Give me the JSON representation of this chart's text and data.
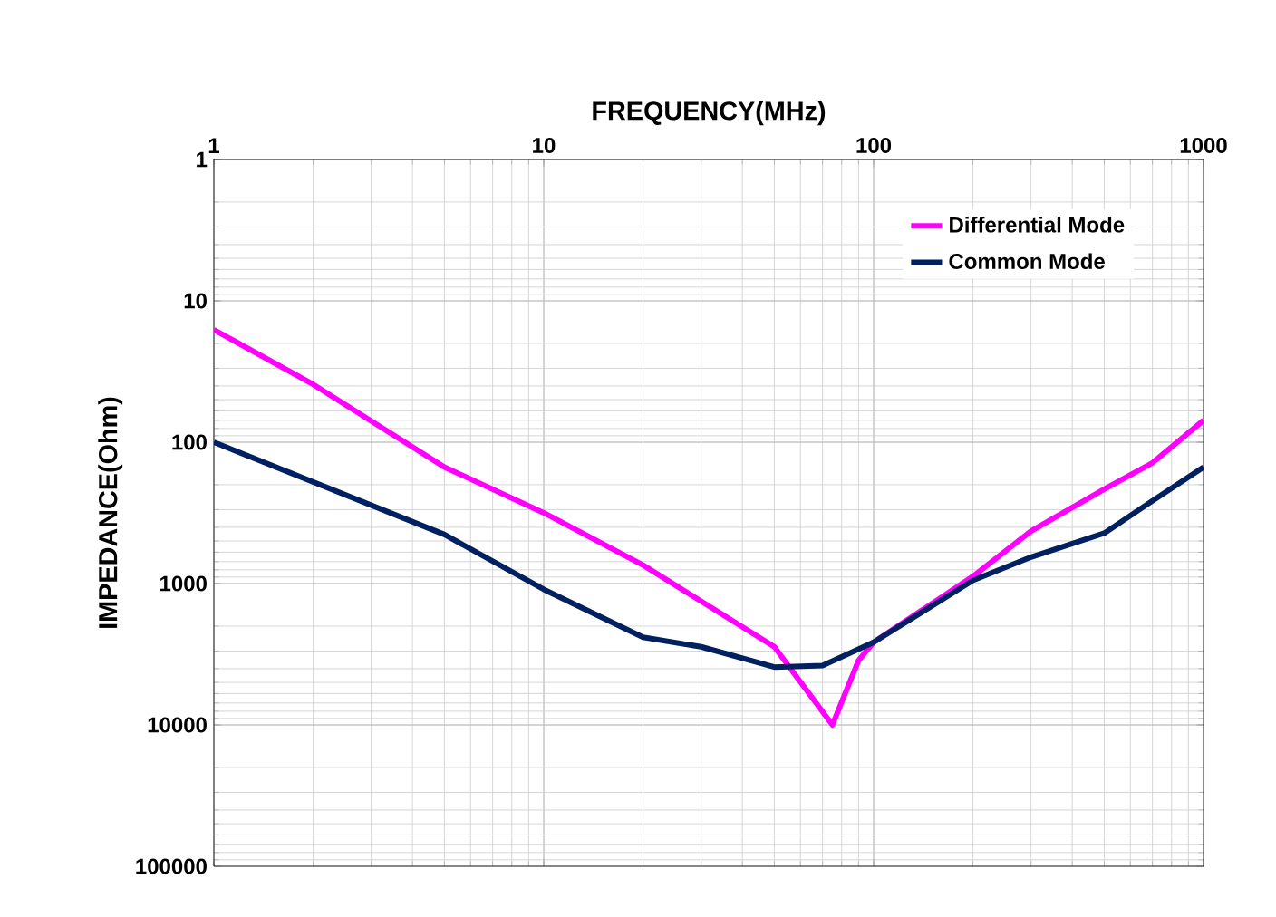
{
  "chart_data": {
    "type": "line",
    "xlabel": "FREQUENCY(MHz)",
    "ylabel": "IMPEDANCE(Ohm)",
    "xlim": [
      1,
      1000
    ],
    "xticks": [
      1,
      10,
      100,
      1000
    ],
    "ylim": [
      100000,
      1
    ],
    "yticks": [
      1,
      10,
      100,
      1000,
      10000,
      100000
    ],
    "log": "xy",
    "grid": true,
    "legend": "top right",
    "series": [
      {
        "name": "Differential Mode",
        "color": "#ff00ff",
        "x": [
          1,
          2,
          5,
          10,
          20,
          50,
          75,
          90,
          100,
          200,
          300,
          500,
          700,
          1000
        ],
        "values": [
          16,
          39,
          150,
          316,
          740,
          2800,
          10000,
          3500,
          2600,
          890,
          425,
          215,
          140,
          70
        ]
      },
      {
        "name": "Common Mode",
        "color": "#002060",
        "x": [
          1,
          5,
          10,
          20,
          30,
          50,
          70,
          100,
          200,
          300,
          500,
          700,
          1000
        ],
        "values": [
          100,
          450,
          1100,
          2400,
          2800,
          3900,
          3800,
          2600,
          950,
          650,
          440,
          260,
          150
        ]
      }
    ]
  }
}
